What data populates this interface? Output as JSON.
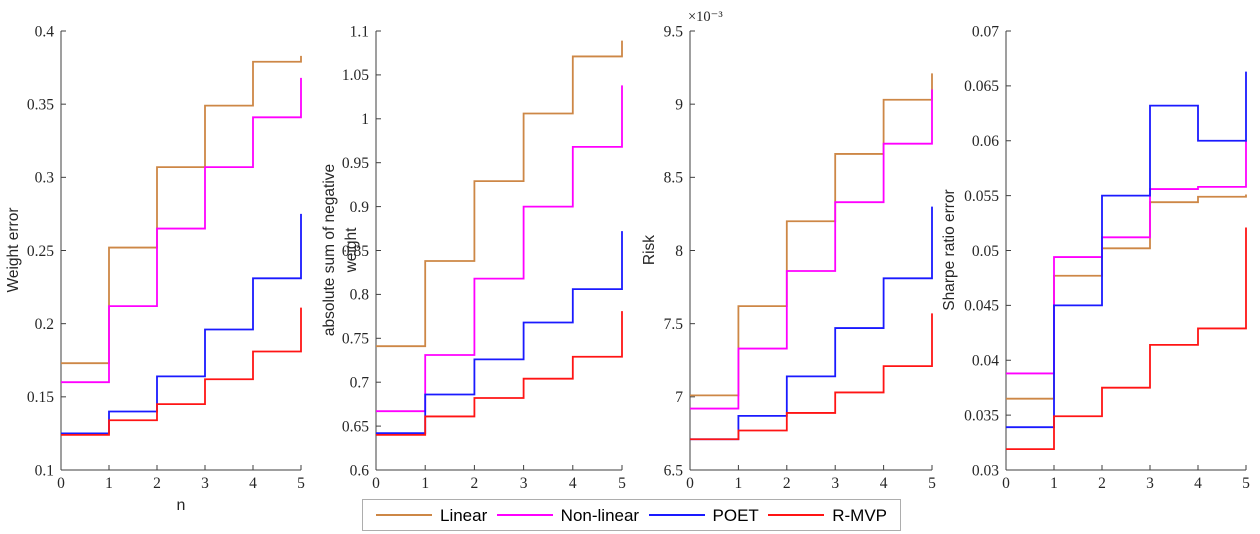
{
  "colors": {
    "axis": "#3f3f3f",
    "tick_label": "#262626",
    "legend_border": "#adadad",
    "background": "#ffffff"
  },
  "legend": {
    "items": [
      {
        "label": "Linear",
        "color": "#cd8746"
      },
      {
        "label": "Non-linear",
        "color": "#ff00ff"
      },
      {
        "label": "POET",
        "color": "#1a1aff"
      },
      {
        "label": "R-MVP",
        "color": "#ff1414"
      }
    ]
  },
  "chart_data": [
    {
      "type": "stairs",
      "ylabel": "Weight error",
      "xlabel": "n",
      "x": [
        0,
        1,
        2,
        3,
        4,
        5
      ],
      "xlim": [
        0,
        5
      ],
      "ylim": [
        0.1,
        0.4
      ],
      "xtick_labels": [
        "0",
        "1",
        "2",
        "3",
        "4",
        "5"
      ],
      "ytick_values": [
        0.1,
        0.15,
        0.2,
        0.25,
        0.3,
        0.35,
        0.4
      ],
      "ytick_labels": [
        "0.1",
        "0.15",
        "0.2",
        "0.25",
        "0.3",
        "0.35",
        "0.4"
      ],
      "series": [
        {
          "name": "Linear",
          "color": "#cd8746",
          "values": [
            0.173,
            0.252,
            0.307,
            0.349,
            0.379,
            0.383
          ]
        },
        {
          "name": "Non-linear",
          "color": "#ff00ff",
          "values": [
            0.16,
            0.212,
            0.265,
            0.307,
            0.341,
            0.368
          ]
        },
        {
          "name": "POET",
          "color": "#1a1aff",
          "values": [
            0.125,
            0.14,
            0.164,
            0.196,
            0.231,
            0.275
          ]
        },
        {
          "name": "R-MVP",
          "color": "#ff1414",
          "values": [
            0.124,
            0.134,
            0.145,
            0.162,
            0.181,
            0.211
          ]
        }
      ]
    },
    {
      "type": "stairs",
      "ylabel": "absolute sum of negative weight",
      "xlabel": "",
      "x": [
        0,
        1,
        2,
        3,
        4,
        5
      ],
      "xlim": [
        0,
        5
      ],
      "ylim": [
        0.6,
        1.1
      ],
      "xtick_labels": [
        "0",
        "1",
        "2",
        "3",
        "4",
        "5"
      ],
      "ytick_values": [
        0.6,
        0.65,
        0.7,
        0.75,
        0.8,
        0.85,
        0.9,
        0.95,
        1,
        1.05,
        1.1
      ],
      "ytick_labels": [
        "0.6",
        "0.65",
        "0.7",
        "0.75",
        "0.8",
        "0.85",
        "0.9",
        "0.95",
        "1",
        "1.05",
        "1.1"
      ],
      "series": [
        {
          "name": "Linear",
          "color": "#cd8746",
          "values": [
            0.741,
            0.838,
            0.929,
            1.006,
            1.071,
            1.089
          ]
        },
        {
          "name": "Non-linear",
          "color": "#ff00ff",
          "values": [
            0.667,
            0.731,
            0.818,
            0.9,
            0.968,
            1.038
          ]
        },
        {
          "name": "POET",
          "color": "#1a1aff",
          "values": [
            0.642,
            0.686,
            0.726,
            0.768,
            0.806,
            0.872
          ]
        },
        {
          "name": "R-MVP",
          "color": "#ff1414",
          "values": [
            0.64,
            0.661,
            0.682,
            0.704,
            0.729,
            0.781
          ]
        }
      ]
    },
    {
      "type": "stairs",
      "ylabel": "Risk",
      "xlabel": "",
      "y_exponent_label": "×10⁻³",
      "y_unit_multiplier": 0.001,
      "x": [
        0,
        1,
        2,
        3,
        4,
        5
      ],
      "xlim": [
        0,
        5
      ],
      "ylim": [
        6.5,
        9.5
      ],
      "xtick_labels": [
        "0",
        "1",
        "2",
        "3",
        "4",
        "5"
      ],
      "ytick_values": [
        6.5,
        7,
        7.5,
        8,
        8.5,
        9,
        9.5
      ],
      "ytick_labels": [
        "6.5",
        "7",
        "7.5",
        "8",
        "8.5",
        "9",
        "9.5"
      ],
      "series": [
        {
          "name": "Linear",
          "color": "#cd8746",
          "values": [
            7.01,
            7.62,
            8.2,
            8.66,
            9.03,
            9.21
          ]
        },
        {
          "name": "Non-linear",
          "color": "#ff00ff",
          "values": [
            6.92,
            7.33,
            7.86,
            8.33,
            8.73,
            9.1
          ]
        },
        {
          "name": "POET",
          "color": "#1a1aff",
          "values": [
            6.71,
            6.87,
            7.14,
            7.47,
            7.81,
            8.3
          ]
        },
        {
          "name": "R-MVP",
          "color": "#ff1414",
          "values": [
            6.71,
            6.77,
            6.89,
            7.03,
            7.21,
            7.57
          ]
        }
      ]
    },
    {
      "type": "stairs",
      "ylabel": "Sharpe ratio error",
      "xlabel": "",
      "x": [
        0,
        1,
        2,
        3,
        4,
        5
      ],
      "xlim": [
        0,
        5
      ],
      "ylim": [
        0.03,
        0.07
      ],
      "xtick_labels": [
        "0",
        "1",
        "2",
        "3",
        "4",
        "5"
      ],
      "ytick_values": [
        0.03,
        0.035,
        0.04,
        0.045,
        0.05,
        0.055,
        0.06,
        0.065,
        0.07
      ],
      "ytick_labels": [
        "0.03",
        "0.035",
        "0.04",
        "0.045",
        "0.05",
        "0.055",
        "0.06",
        "0.065",
        "0.07"
      ],
      "series": [
        {
          "name": "Linear",
          "color": "#cd8746",
          "values": [
            0.0365,
            0.0477,
            0.0502,
            0.0544,
            0.0549,
            0.0551
          ]
        },
        {
          "name": "Non-linear",
          "color": "#ff00ff",
          "values": [
            0.0388,
            0.0494,
            0.0512,
            0.0556,
            0.0558,
            0.06
          ]
        },
        {
          "name": "POET",
          "color": "#1a1aff",
          "values": [
            0.0339,
            0.045,
            0.055,
            0.0632,
            0.06,
            0.0663
          ]
        },
        {
          "name": "R-MVP",
          "color": "#ff1414",
          "values": [
            0.0319,
            0.0349,
            0.0375,
            0.0414,
            0.0429,
            0.0521
          ]
        }
      ]
    }
  ]
}
